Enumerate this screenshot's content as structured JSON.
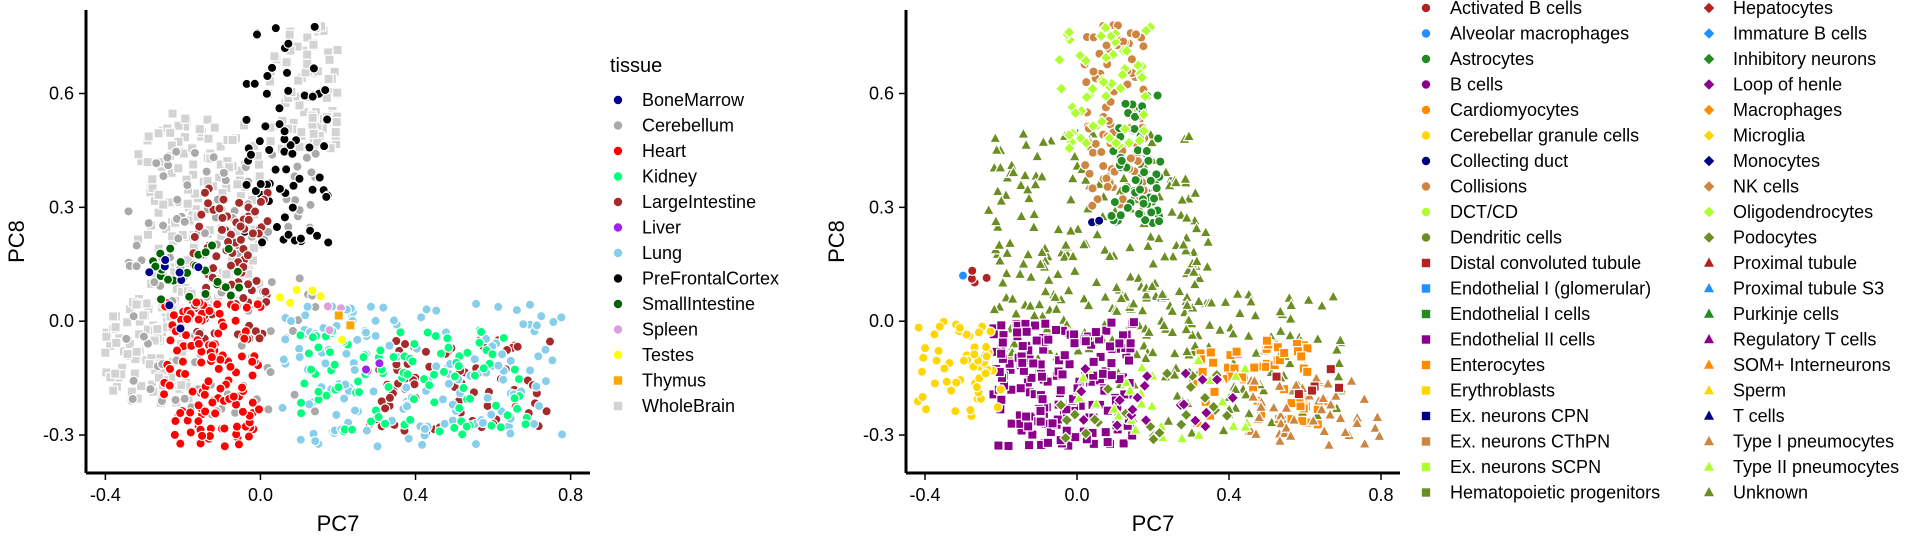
{
  "chart_data": [
    {
      "type": "scatter",
      "xlabel": "PC7",
      "ylabel": "PC8",
      "xlim": [
        -0.45,
        0.85
      ],
      "ylim": [
        -0.4,
        0.82
      ],
      "xticks": [
        -0.4,
        0.0,
        0.4,
        0.8
      ],
      "xtick_labels": [
        "-0.4",
        "0.0",
        "0.4",
        "0.8"
      ],
      "yticks": [
        -0.3,
        0.0,
        0.3,
        0.6
      ],
      "ytick_labels": [
        "-0.3",
        "0.0",
        "0.3",
        "0.6"
      ],
      "grid": false,
      "legend": {
        "title": "tissue",
        "placement": "right",
        "entries": [
          {
            "label": "BoneMarrow",
            "color": "#00008B",
            "shape": "circle"
          },
          {
            "label": "Cerebellum",
            "color": "#A9A9A9",
            "shape": "circle"
          },
          {
            "label": "Heart",
            "color": "#FF0000",
            "shape": "circle"
          },
          {
            "label": "Kidney",
            "color": "#00FF7F",
            "shape": "circle"
          },
          {
            "label": "LargeIntestine",
            "color": "#A52A2A",
            "shape": "circle"
          },
          {
            "label": "Liver",
            "color": "#A020F0",
            "shape": "circle"
          },
          {
            "label": "Lung",
            "color": "#87CEEB",
            "shape": "circle"
          },
          {
            "label": "PreFrontalCortex",
            "color": "#000000",
            "shape": "circle"
          },
          {
            "label": "SmallIntestine",
            "color": "#006400",
            "shape": "circle"
          },
          {
            "label": "Spleen",
            "color": "#DDA0DD",
            "shape": "circle"
          },
          {
            "label": "Testes",
            "color": "#FFFF00",
            "shape": "circle"
          },
          {
            "label": "Thymus",
            "color": "#FFA500",
            "shape": "square"
          },
          {
            "label": "WholeBrain",
            "color": "#D3D3D3",
            "shape": "square"
          }
        ]
      },
      "clusters": [
        {
          "label": "WholeBrain",
          "n": 170,
          "x": [
            -0.32,
            0.0
          ],
          "y": [
            0.05,
            0.55
          ]
        },
        {
          "label": "WholeBrain",
          "n": 90,
          "x": [
            0.02,
            0.2
          ],
          "y": [
            0.45,
            0.78
          ]
        },
        {
          "label": "WholeBrain",
          "n": 110,
          "x": [
            -0.4,
            -0.18
          ],
          "y": [
            -0.22,
            0.05
          ]
        },
        {
          "label": "Cerebellum",
          "n": 130,
          "x": [
            -0.35,
            0.15
          ],
          "y": [
            -0.25,
            0.45
          ]
        },
        {
          "label": "PreFrontalCortex",
          "n": 70,
          "x": [
            -0.05,
            0.18
          ],
          "y": [
            0.2,
            0.78
          ]
        },
        {
          "label": "LargeIntestine",
          "n": 90,
          "x": [
            -0.18,
            0.02
          ],
          "y": [
            -0.05,
            0.35
          ]
        },
        {
          "label": "LargeIntestine",
          "n": 75,
          "x": [
            0.28,
            0.75
          ],
          "y": [
            -0.3,
            -0.05
          ]
        },
        {
          "label": "Heart",
          "n": 130,
          "x": [
            -0.25,
            0.0
          ],
          "y": [
            -0.33,
            0.05
          ]
        },
        {
          "label": "Lung",
          "n": 150,
          "x": [
            0.05,
            0.78
          ],
          "y": [
            -0.33,
            0.05
          ]
        },
        {
          "label": "Kidney",
          "n": 100,
          "x": [
            0.1,
            0.7
          ],
          "y": [
            -0.3,
            -0.02
          ]
        },
        {
          "label": "SmallIntestine",
          "n": 25,
          "x": [
            -0.28,
            -0.05
          ],
          "y": [
            0.05,
            0.2
          ]
        },
        {
          "label": "BoneMarrow",
          "n": 8,
          "x": [
            -0.3,
            -0.15
          ],
          "y": [
            -0.02,
            0.18
          ]
        },
        {
          "label": "Testes",
          "n": 6,
          "x": [
            0.05,
            0.32
          ],
          "y": [
            -0.05,
            0.1
          ]
        },
        {
          "label": "Liver",
          "n": 3,
          "x": [
            0.25,
            0.33
          ],
          "y": [
            -0.15,
            -0.1
          ]
        },
        {
          "label": "Spleen",
          "n": 3,
          "x": [
            0.15,
            0.3
          ],
          "y": [
            -0.05,
            0.05
          ]
        },
        {
          "label": "Thymus",
          "n": 2,
          "x": [
            0.2,
            0.3
          ],
          "y": [
            -0.02,
            0.02
          ]
        }
      ]
    },
    {
      "type": "scatter",
      "xlabel": "PC7",
      "ylabel": "PC8",
      "xlim": [
        -0.45,
        0.85
      ],
      "ylim": [
        -0.4,
        0.82
      ],
      "xticks": [
        -0.4,
        0.0,
        0.4,
        0.8
      ],
      "xtick_labels": [
        "-0.4",
        "0.0",
        "0.4",
        "0.8"
      ],
      "yticks": [
        -0.3,
        0.0,
        0.3,
        0.6
      ],
      "ytick_labels": [
        "-0.3",
        "0.0",
        "0.3",
        "0.6"
      ],
      "grid": false,
      "legend": {
        "title": "",
        "placement": "right",
        "columns": 2,
        "entries": [
          {
            "label": "Activated B cells",
            "color": "#B22222",
            "shape": "circle"
          },
          {
            "label": "Alveolar macrophages",
            "color": "#1E90FF",
            "shape": "circle"
          },
          {
            "label": "Astrocytes",
            "color": "#228B22",
            "shape": "circle"
          },
          {
            "label": "B cells",
            "color": "#8B008B",
            "shape": "circle"
          },
          {
            "label": "Cardiomyocytes",
            "color": "#FF8C00",
            "shape": "circle"
          },
          {
            "label": "Cerebellar granule cells",
            "color": "#FFD700",
            "shape": "circle"
          },
          {
            "label": "Collecting duct",
            "color": "#000080",
            "shape": "circle"
          },
          {
            "label": "Collisions",
            "color": "#CD853F",
            "shape": "circle"
          },
          {
            "label": "DCT/CD",
            "color": "#ADFF2F",
            "shape": "circle"
          },
          {
            "label": "Dendritic cells",
            "color": "#6B8E23",
            "shape": "circle"
          },
          {
            "label": "Distal convoluted tubule",
            "color": "#B22222",
            "shape": "square"
          },
          {
            "label": "Endothelial I (glomerular)",
            "color": "#1E90FF",
            "shape": "square"
          },
          {
            "label": "Endothelial I cells",
            "color": "#228B22",
            "shape": "square"
          },
          {
            "label": "Endothelial II cells",
            "color": "#8B008B",
            "shape": "square"
          },
          {
            "label": "Enterocytes",
            "color": "#FF8C00",
            "shape": "square"
          },
          {
            "label": "Erythroblasts",
            "color": "#FFD700",
            "shape": "square"
          },
          {
            "label": "Ex. neurons CPN",
            "color": "#000080",
            "shape": "square"
          },
          {
            "label": "Ex. neurons CThPN",
            "color": "#CD853F",
            "shape": "square"
          },
          {
            "label": "Ex. neurons SCPN",
            "color": "#ADFF2F",
            "shape": "square"
          },
          {
            "label": "Hematopoietic progenitors",
            "color": "#6B8E23",
            "shape": "square"
          },
          {
            "label": "Hepatocytes",
            "color": "#B22222",
            "shape": "diamond"
          },
          {
            "label": "Immature B cells",
            "color": "#1E90FF",
            "shape": "diamond"
          },
          {
            "label": "Inhibitory neurons",
            "color": "#228B22",
            "shape": "diamond"
          },
          {
            "label": "Loop of henle",
            "color": "#8B008B",
            "shape": "diamond"
          },
          {
            "label": "Macrophages",
            "color": "#FF8C00",
            "shape": "diamond"
          },
          {
            "label": "Microglia",
            "color": "#FFD700",
            "shape": "diamond"
          },
          {
            "label": "Monocytes",
            "color": "#000080",
            "shape": "diamond"
          },
          {
            "label": "NK cells",
            "color": "#CD853F",
            "shape": "diamond"
          },
          {
            "label": "Oligodendrocytes",
            "color": "#ADFF2F",
            "shape": "diamond"
          },
          {
            "label": "Podocytes",
            "color": "#6B8E23",
            "shape": "diamond"
          },
          {
            "label": "Proximal tubule",
            "color": "#B22222",
            "shape": "triangle"
          },
          {
            "label": "Proximal tubule S3",
            "color": "#1E90FF",
            "shape": "triangle"
          },
          {
            "label": "Purkinje cells",
            "color": "#228B22",
            "shape": "triangle"
          },
          {
            "label": "Regulatory T cells",
            "color": "#8B008B",
            "shape": "triangle"
          },
          {
            "label": "SOM+ Interneurons",
            "color": "#FF8C00",
            "shape": "triangle"
          },
          {
            "label": "Sperm",
            "color": "#FFD700",
            "shape": "triangle"
          },
          {
            "label": "T cells",
            "color": "#000080",
            "shape": "triangle"
          },
          {
            "label": "Type I pneumocytes",
            "color": "#CD853F",
            "shape": "triangle"
          },
          {
            "label": "Type II pneumocytes",
            "color": "#ADFF2F",
            "shape": "triangle"
          },
          {
            "label": "Unknown",
            "color": "#6B8E23",
            "shape": "triangle"
          }
        ]
      },
      "clusters": [
        {
          "label": "Unknown",
          "n": 260,
          "x": [
            -0.25,
            0.35
          ],
          "y": [
            -0.1,
            0.5
          ]
        },
        {
          "label": "Unknown",
          "n": 110,
          "x": [
            0.1,
            0.7
          ],
          "y": [
            -0.3,
            0.1
          ]
        },
        {
          "label": "Collisions",
          "n": 90,
          "x": [
            0.02,
            0.18
          ],
          "y": [
            0.3,
            0.78
          ]
        },
        {
          "label": "Astrocytes",
          "n": 60,
          "x": [
            0.08,
            0.22
          ],
          "y": [
            0.25,
            0.6
          ]
        },
        {
          "label": "Oligodendrocytes",
          "n": 55,
          "x": [
            -0.05,
            0.2
          ],
          "y": [
            0.45,
            0.78
          ]
        },
        {
          "label": "Endothelial II cells",
          "n": 190,
          "x": [
            -0.22,
            0.15
          ],
          "y": [
            -0.33,
            0.0
          ]
        },
        {
          "label": "Cerebellar granule cells",
          "n": 55,
          "x": [
            -0.42,
            -0.2
          ],
          "y": [
            -0.25,
            0.0
          ]
        },
        {
          "label": "Enterocytes",
          "n": 60,
          "x": [
            0.3,
            0.65
          ],
          "y": [
            -0.28,
            -0.05
          ]
        },
        {
          "label": "Type I pneumocytes",
          "n": 50,
          "x": [
            0.45,
            0.8
          ],
          "y": [
            -0.33,
            -0.15
          ]
        },
        {
          "label": "Type II pneumocytes",
          "n": 30,
          "x": [
            0.0,
            0.45
          ],
          "y": [
            -0.32,
            -0.1
          ]
        },
        {
          "label": "Podocytes",
          "n": 25,
          "x": [
            -0.05,
            0.4
          ],
          "y": [
            -0.33,
            -0.12
          ]
        },
        {
          "label": "Loop of henle",
          "n": 20,
          "x": [
            0.0,
            0.45
          ],
          "y": [
            -0.28,
            -0.1
          ]
        },
        {
          "label": "Distal convoluted tubule",
          "n": 6,
          "x": [
            0.5,
            0.72
          ],
          "y": [
            -0.22,
            -0.12
          ]
        },
        {
          "label": "Alveolar macrophages",
          "n": 1,
          "x": [
            -0.3,
            -0.3
          ],
          "y": [
            0.12,
            0.12
          ]
        },
        {
          "label": "Activated B cells",
          "n": 4,
          "x": [
            -0.28,
            -0.22
          ],
          "y": [
            0.1,
            0.14
          ]
        },
        {
          "label": "Collecting duct",
          "n": 2,
          "x": [
            0.02,
            0.06
          ],
          "y": [
            0.24,
            0.27
          ]
        }
      ]
    }
  ]
}
